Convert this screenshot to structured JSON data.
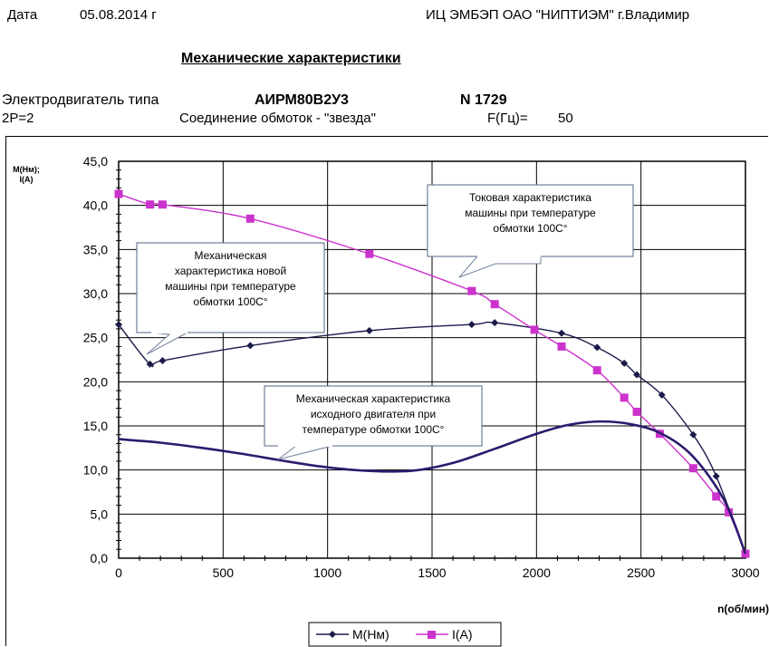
{
  "header": {
    "date_label": "Дата",
    "date_value": "05.08.2014 г",
    "organization": "ИЦ ЭМБЭП ОАО \"НИПТИЭМ\" г.Владимир",
    "title": "Механические характеристики",
    "motor_label": "Электродвигатель типа",
    "motor_type": "АИРМ80В2У3",
    "serial": "N 1729",
    "poles": "2P=2",
    "winding": "Соединение обмоток - \"звезда\"",
    "freq_label": "F(Гц)=",
    "freq_value": "50"
  },
  "colors": {
    "torque": "#1a1a4a",
    "current": "#cc33cc",
    "original": "#2e1a6e",
    "grid": "#000000",
    "callout_border": "#6e7f9a"
  },
  "chart_data": {
    "type": "line",
    "ylabel": "M(Нм);\nI(A)",
    "xlabel": "n(об/мин)",
    "xlim": [
      0,
      3000
    ],
    "ylim": [
      0,
      45
    ],
    "x_ticks": [
      "0",
      "500",
      "1000",
      "1500",
      "2000",
      "2500",
      "3000"
    ],
    "y_ticks": [
      "0,0",
      "5,0",
      "10,0",
      "15,0",
      "20,0",
      "25,0",
      "30,0",
      "35,0",
      "40,0",
      "45,0"
    ],
    "grid": true,
    "legend": [
      "M(Нм)",
      "I(A)"
    ],
    "legend_position": "bottom",
    "series": [
      {
        "name": "M(Нм)",
        "marker": "diamond",
        "points": [
          [
            0,
            26.5
          ],
          [
            150,
            22.0
          ],
          [
            210,
            22.4
          ],
          [
            630,
            24.1
          ],
          [
            1200,
            25.8
          ],
          [
            1690,
            26.5
          ],
          [
            1800,
            26.7
          ],
          [
            2120,
            25.5
          ],
          [
            2290,
            23.9
          ],
          [
            2420,
            22.1
          ],
          [
            2480,
            20.8
          ],
          [
            2600,
            18.5
          ],
          [
            2750,
            14.0
          ],
          [
            2860,
            9.3
          ],
          [
            3000,
            0.5
          ]
        ]
      },
      {
        "name": "I(A)",
        "marker": "square",
        "points": [
          [
            0,
            41.3
          ],
          [
            150,
            40.1
          ],
          [
            210,
            40.1
          ],
          [
            630,
            38.5
          ],
          [
            1200,
            34.5
          ],
          [
            1690,
            30.3
          ],
          [
            1800,
            28.8
          ],
          [
            1990,
            25.9
          ],
          [
            2120,
            24.0
          ],
          [
            2290,
            21.3
          ],
          [
            2420,
            18.2
          ],
          [
            2480,
            16.6
          ],
          [
            2590,
            14.1
          ],
          [
            2750,
            10.2
          ],
          [
            2860,
            7.0
          ],
          [
            2920,
            5.2
          ],
          [
            3000,
            0.5
          ]
        ]
      },
      {
        "marker": "none",
        "points": [
          [
            0,
            13.5
          ],
          [
            200,
            13.1
          ],
          [
            400,
            12.5
          ],
          [
            600,
            11.8
          ],
          [
            800,
            11.0
          ],
          [
            1000,
            10.3
          ],
          [
            1200,
            9.9
          ],
          [
            1400,
            9.9
          ],
          [
            1600,
            10.8
          ],
          [
            1800,
            12.4
          ],
          [
            2000,
            14.1
          ],
          [
            2150,
            15.1
          ],
          [
            2300,
            15.5
          ],
          [
            2450,
            15.2
          ],
          [
            2600,
            14.1
          ],
          [
            2750,
            11.5
          ],
          [
            2900,
            6.5
          ],
          [
            3000,
            0.5
          ]
        ]
      }
    ],
    "annotations": [
      "Токовая характеристика\nмашины при температуре\nобмотки 100С°",
      "Механическая\nхарактеристика новой\nмашины при температуре\nобмотки 100С°",
      "Механическая характеристика\nисходного двигателя при\nтемпературе обмотки 100С°"
    ]
  }
}
